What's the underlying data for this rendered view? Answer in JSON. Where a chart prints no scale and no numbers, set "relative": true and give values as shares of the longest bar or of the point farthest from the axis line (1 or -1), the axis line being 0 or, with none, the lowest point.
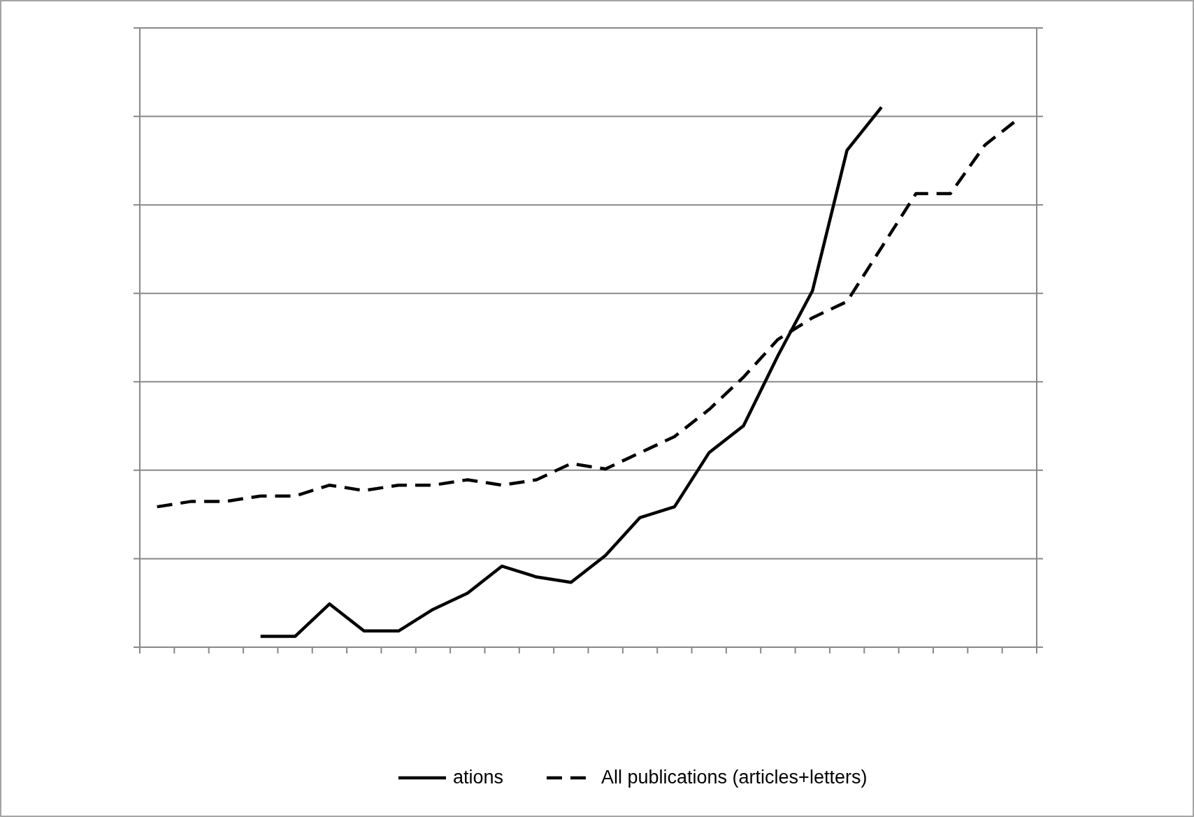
{
  "chart_data": {
    "type": "line",
    "relative": true,
    "grid": "y",
    "legend": "bottom",
    "categories": [
      null,
      null,
      null,
      null,
      null,
      null,
      null,
      null,
      null,
      null,
      null,
      null,
      null,
      null,
      null,
      null,
      null,
      null,
      null,
      null,
      null,
      null,
      null,
      null,
      null,
      null
    ],
    "series": [
      {
        "name": "ations",
        "color": "#000000",
        "line_style": "solid",
        "values": [
          null,
          null,
          null,
          0.02,
          0.02,
          0.08,
          0.03,
          0.03,
          0.07,
          0.1,
          0.15,
          0.13,
          0.12,
          0.17,
          0.24,
          0.26,
          0.36,
          0.41,
          0.54,
          0.66,
          0.92,
          1.0,
          null,
          null,
          null,
          null
        ]
      },
      {
        "name": "All publications (articles+letters)",
        "color": "#000000",
        "line_style": "dashed",
        "values": [
          0.26,
          0.27,
          0.27,
          0.28,
          0.28,
          0.3,
          0.29,
          0.3,
          0.3,
          0.31,
          0.3,
          0.31,
          0.34,
          0.33,
          0.36,
          0.39,
          0.44,
          0.5,
          0.57,
          0.61,
          0.64,
          0.74,
          0.84,
          0.84,
          0.93,
          0.98
        ]
      }
    ]
  }
}
